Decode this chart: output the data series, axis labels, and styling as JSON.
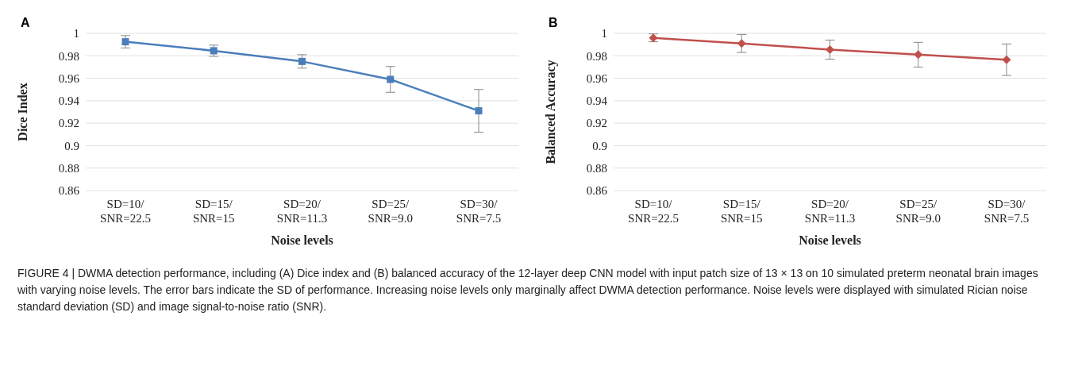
{
  "chart_data": [
    {
      "type": "line",
      "title": "A",
      "categories": [
        "SD=10/ SNR=22.5",
        "SD=15/ SNR=15",
        "SD=20/ SNR=11.3",
        "SD=25/ SNR=9.0",
        "SD=30/ SNR=7.5"
      ],
      "xlabel": "Noise levels",
      "ylabel": "Dice Index",
      "ylim": [
        0.86,
        1
      ],
      "yticks": [
        0.86,
        0.88,
        0.9,
        0.92,
        0.94,
        0.96,
        0.98,
        1
      ],
      "grid": "y",
      "marker": "square",
      "series": [
        {
          "color": "#4a7ebb",
          "values": [
            0.9925,
            0.9845,
            0.975,
            0.959,
            0.931
          ],
          "errors": [
            0.0055,
            0.005,
            0.006,
            0.0115,
            0.019
          ]
        }
      ]
    },
    {
      "type": "line",
      "title": "B",
      "categories": [
        "SD=10/ SNR=22.5",
        "SD=15/ SNR=15",
        "SD=20/ SNR=11.3",
        "SD=25/ SNR=9.0",
        "SD=30/ SNR=7.5"
      ],
      "xlabel": "Noise levels",
      "ylabel": "Balanced Accuracy",
      "ylim": [
        0.86,
        1
      ],
      "yticks": [
        0.86,
        0.88,
        0.9,
        0.92,
        0.94,
        0.96,
        0.98,
        1
      ],
      "grid": "y",
      "marker": "diamond",
      "series": [
        {
          "color": "#c0504d",
          "values": [
            0.996,
            0.991,
            0.9855,
            0.981,
            0.9765
          ],
          "errors": [
            0.0035,
            0.008,
            0.0085,
            0.011,
            0.014
          ]
        }
      ],
      "annotations": [
        "FIGURE 4 | DWMA detection performance, including (A) Dice index and (B) balanced accuracy of the 12-layer deep CNN model with input patch size of 13 × 13 on 10 simulated preterm neonatal brain images with varying noise levels. The error bars indicate the SD of performance. Increasing noise levels only marginally affect DWMA detection performance. Noise levels were displayed with simulated Rician noise standard deviation (SD) and image signal-to-noise ratio (SNR)."
      ]
    }
  ]
}
